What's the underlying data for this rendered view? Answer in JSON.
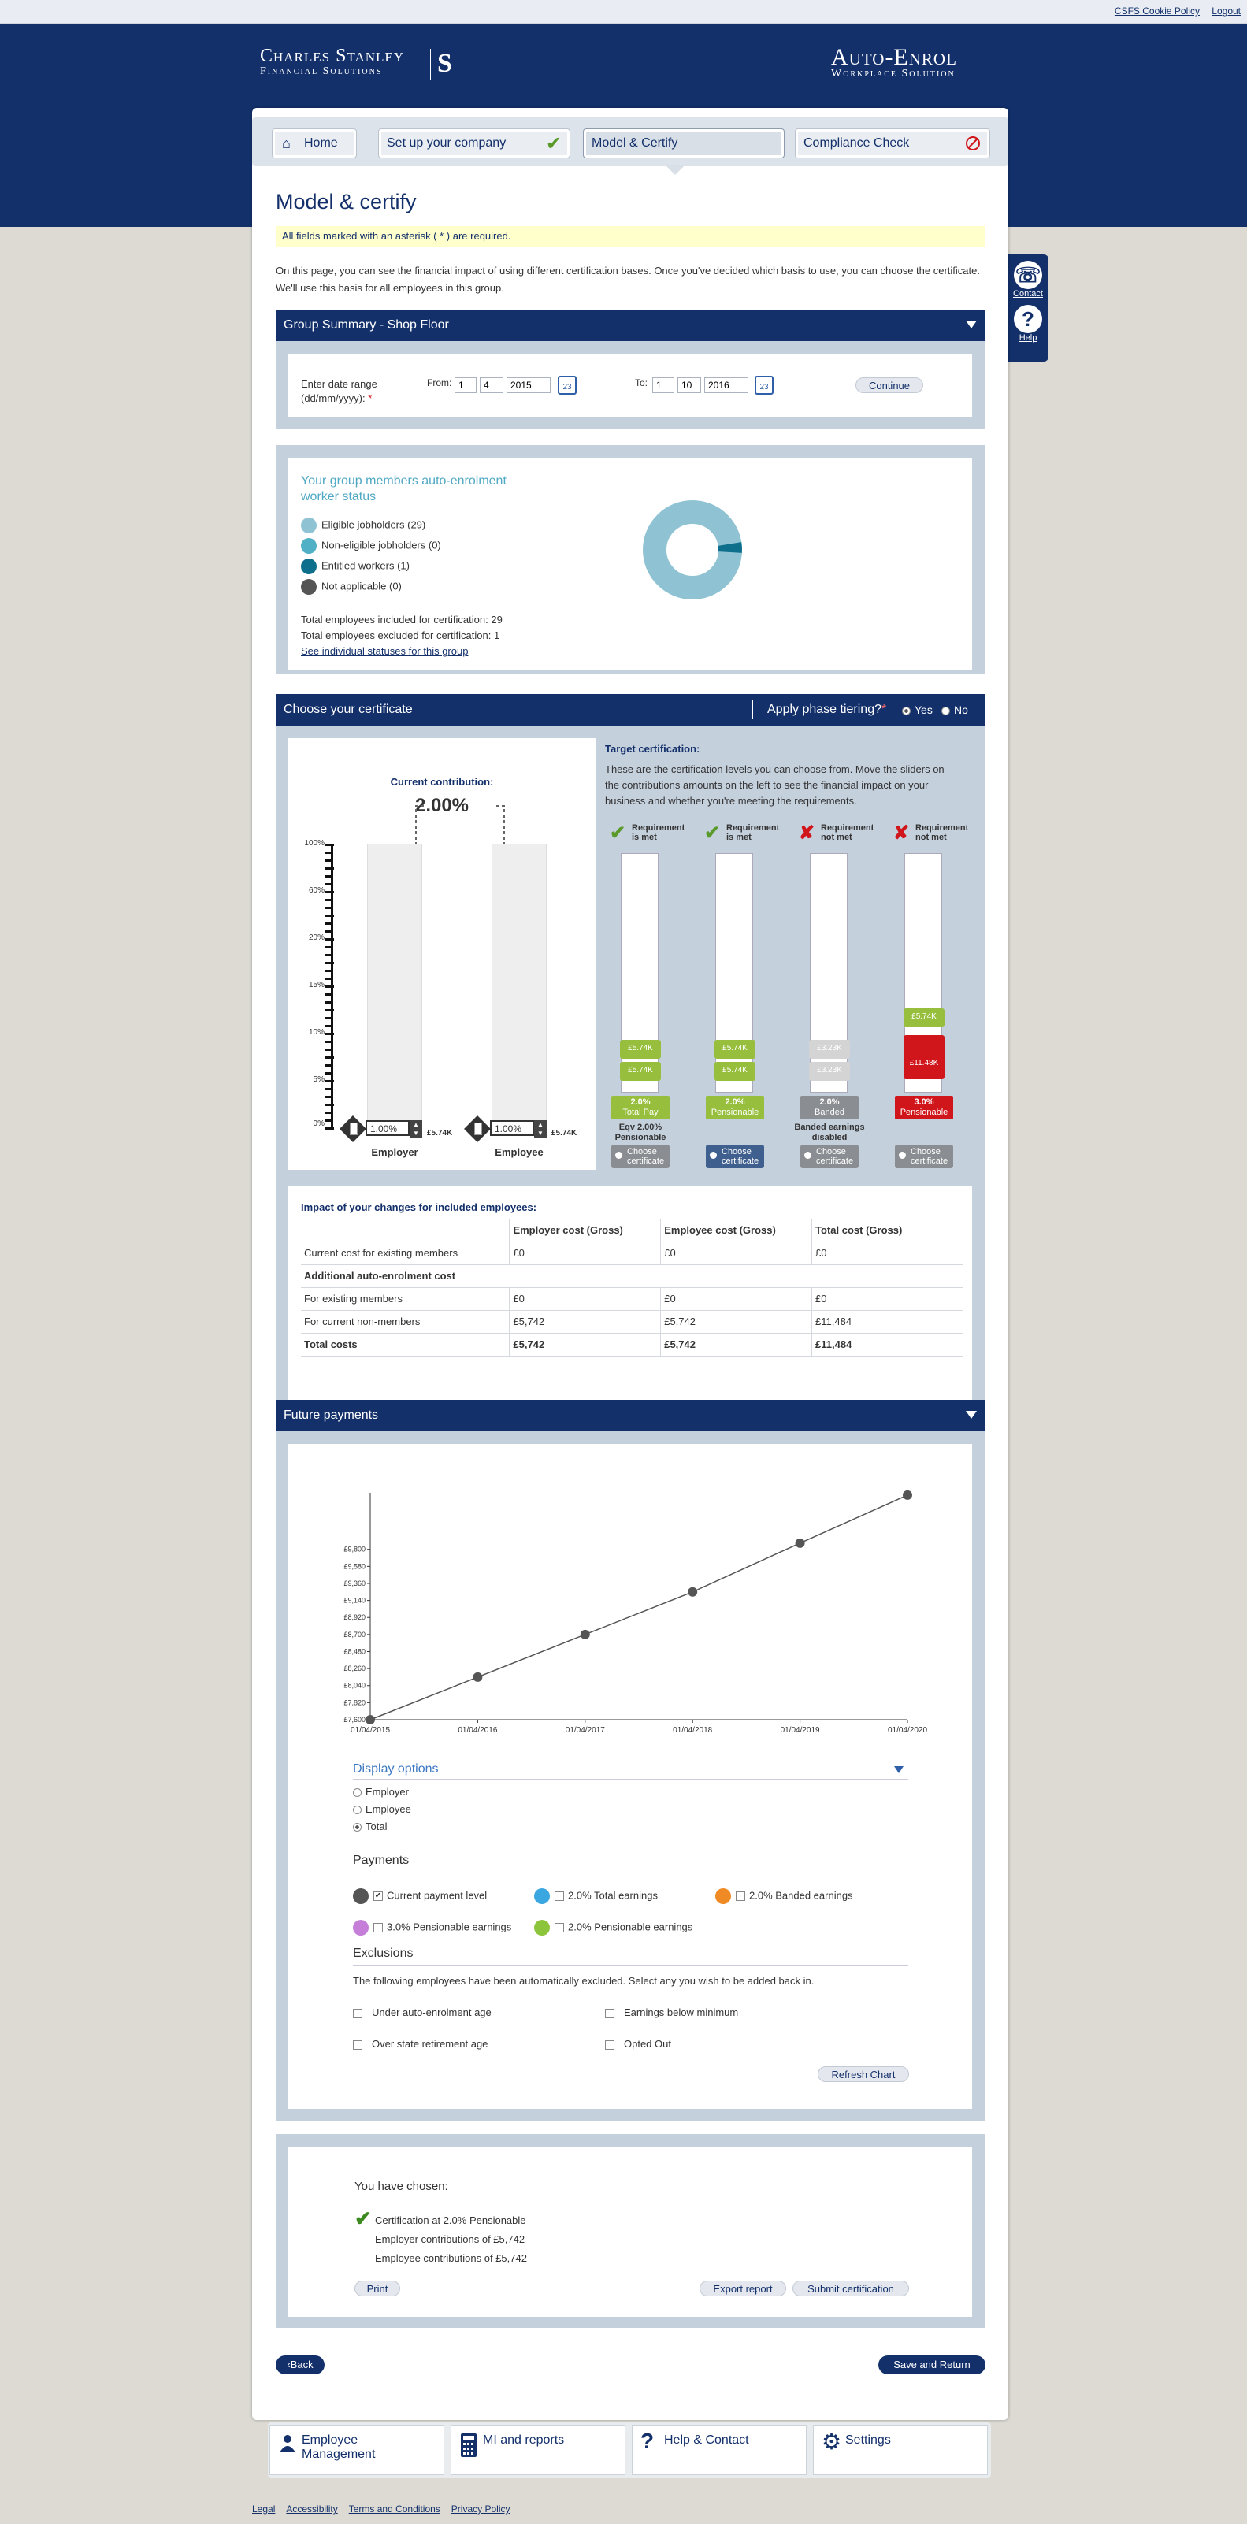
{
  "top_links": {
    "cookie": "CSFS Cookie Policy",
    "logout": "Logout"
  },
  "brand": {
    "left_line1": "Charles Stanley",
    "left_line2": "Financial Solutions",
    "left_mark": "S",
    "right_line1": "Auto-Enrol",
    "right_line2": "Workplace Solution"
  },
  "nav": {
    "home": "Home",
    "setup": "Set up your company",
    "model": "Model & Certify",
    "compliance": "Compliance Check"
  },
  "side": {
    "contact": "Contact",
    "help": "Help"
  },
  "page_title": "Model & certify",
  "notice": "All fields marked with an asterisk ( * ) are required.",
  "intro": "On this page, you can see the financial impact of using different certification bases. Once you've decided which basis to use, you can choose the certificate. We'll use this basis for all employees in this group.",
  "group_summary": {
    "title": "Group Summary - Shop Floor",
    "date_label": "Enter date range (dd/mm/yyyy):",
    "asterisk": "*",
    "from_label": "From:",
    "from_d": "1",
    "from_m": "4",
    "from_y": "2015",
    "to_label": "To:",
    "to_d": "1",
    "to_m": "10",
    "to_y": "2016",
    "continue": "Continue"
  },
  "status": {
    "title": "Your group members auto-enrolment worker status",
    "legend": [
      {
        "label": "Eligible jobholders (29)",
        "color": "#8fc3d3"
      },
      {
        "label": "Non-eligible jobholders (0)",
        "color": "#4fb0c6"
      },
      {
        "label": "Entitled workers (1)",
        "color": "#0e6f8c"
      },
      {
        "label": "Not applicable (0)",
        "color": "#555555"
      }
    ],
    "included": "Total employees included for certification: 29",
    "excluded": "Total employees excluded for certification: 1",
    "link": "See individual statuses for this group"
  },
  "certificate": {
    "title": "Choose your certificate",
    "phase_label": "Apply phase tiering?",
    "phase_star": "*",
    "yes": "Yes",
    "no": "No",
    "current_title": "Current contribution:",
    "current_value": "2.00%",
    "scale": [
      "100%",
      "60%",
      "20%",
      "15%",
      "10%",
      "5%",
      "0%"
    ],
    "employer_value": "1.00%",
    "employee_value": "1.00%",
    "employer_amount": "£5.74K",
    "employee_amount": "£5.74K",
    "employer_label": "Employer",
    "employee_label": "Employee",
    "target_title": "Target certification:",
    "target_desc": "These are the certification levels you can choose from. Move the sliders on the contributions amounts on the left to see the financial impact on your business and whether you're meeting the requirements.",
    "targets": [
      {
        "req": "Requirement is met",
        "mark": "✔",
        "pill1": "£5.74K",
        "pill2": "£5.74K",
        "label1": "2.0%",
        "label2": "Total Pay",
        "note": "Eqv 2.00% Pensionable",
        "choose": "Choose certificate",
        "color": "#97bf3d"
      },
      {
        "req": "Requirement is met",
        "mark": "✔",
        "pill1": "£5.74K",
        "pill2": "£5.74K",
        "label1": "2.0%",
        "label2": "Pensionable",
        "note": "",
        "choose": "Choose certificate",
        "color": "#97bf3d"
      },
      {
        "req": "Requirement not met",
        "mark": "✘",
        "pill1": "£3.23K",
        "pill2": "£3.23K",
        "label1": "2.0%",
        "label2": "Banded",
        "note": "Banded earnings disabled",
        "choose": "Choose certificate",
        "color": "#c9c9c9"
      },
      {
        "req": "Requirement not met",
        "mark": "✘",
        "pill1": "£5.74K",
        "pill2": "£11.48K",
        "label1": "3.0%",
        "label2": "Pensionable",
        "note": "",
        "choose": "Choose certificate",
        "color": "#d0161b"
      }
    ]
  },
  "impact": {
    "title": "Impact of your changes for included employees:",
    "headers": [
      "",
      "Employer cost (Gross)",
      "Employee cost (Gross)",
      "Total cost (Gross)"
    ],
    "rows": [
      [
        "Current cost for existing members",
        "£0",
        "£0",
        "£0"
      ],
      [
        "Additional auto-enrolment cost",
        "",
        "",
        ""
      ],
      [
        "For existing members",
        "£0",
        "£0",
        "£0"
      ],
      [
        "For current non-members",
        "£5,742",
        "£5,742",
        "£11,484"
      ],
      [
        "Total costs",
        "£5,742",
        "£5,742",
        "£11,484"
      ]
    ]
  },
  "future": {
    "title": "Future payments",
    "display_title": "Display options",
    "display": [
      "Employer",
      "Employee",
      "Total"
    ],
    "payments_title": "Payments",
    "payments": [
      {
        "label": "Current payment level",
        "color": "#555555",
        "checked": "✔"
      },
      {
        "label": "2.0% Total earnings",
        "color": "#3ba7e0",
        "checked": ""
      },
      {
        "label": "2.0% Banded earnings",
        "color": "#f08a24",
        "checked": ""
      },
      {
        "label": "3.0% Pensionable earnings",
        "color": "#c57fd9",
        "checked": ""
      },
      {
        "label": "2.0% Pensionable earnings",
        "color": "#8cc43c",
        "checked": ""
      }
    ],
    "exclusions_title": "Exclusions",
    "exclusions_desc": "The following employees have been automatically excluded. Select any you wish to be added back in.",
    "exclusions": [
      "Under auto-enrolment age",
      "Earnings below minimum",
      "Over state retirement age",
      "Opted Out"
    ],
    "refresh": "Refresh Chart"
  },
  "chart_data": {
    "type": "line",
    "x": [
      "01/04/2015",
      "01/04/2016",
      "01/04/2017",
      "01/04/2018",
      "01/04/2019",
      "01/04/2020"
    ],
    "series": [
      {
        "name": "Current payment level",
        "values": [
          7600,
          8150,
          8700,
          9250,
          9880,
          10500
        ]
      }
    ],
    "yticks": [
      "£7,600",
      "£7,820",
      "£8,040",
      "£8,260",
      "£8,480",
      "£8,700",
      "£8,920",
      "£9,140",
      "£9,360",
      "£9,580",
      "£9,800"
    ],
    "ylim": [
      7600,
      10550
    ],
    "line_color": "#555555",
    "grid": false
  },
  "chosen": {
    "title": "You have chosen:",
    "cert": "Certification at 2.0% Pensionable",
    "employer": "Employer contributions of £5,742",
    "employee": "Employee contributions of £5,742",
    "print": "Print",
    "export": "Export report",
    "submit": "Submit certification"
  },
  "back": "‹Back",
  "save": "Save and Return",
  "footer_nav": {
    "employee": "Employee Management",
    "mi": "MI and reports",
    "help": "Help & Contact",
    "settings": "Settings"
  },
  "bottom_links": [
    "Legal",
    "Accessibility",
    "Terms and Conditions",
    "Privacy Policy"
  ]
}
